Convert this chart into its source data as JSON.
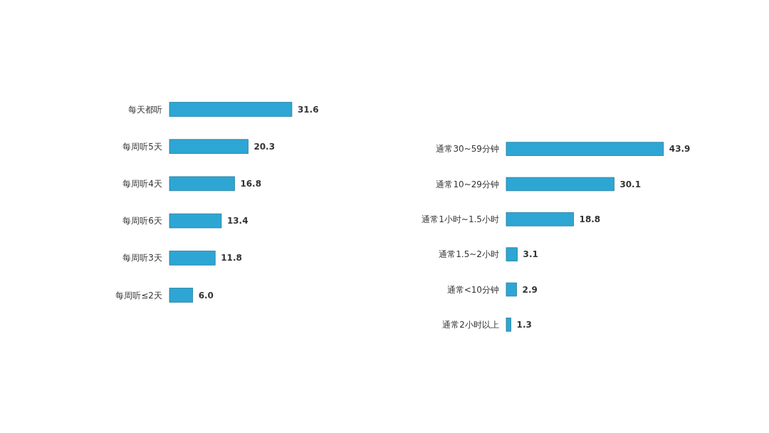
{
  "chart_data": [
    {
      "type": "bar",
      "orientation": "horizontal",
      "categories": [
        "每天都听",
        "每周听5天",
        "每周听4天",
        "每周听6天",
        "每周听3天",
        "每周听≤2天"
      ],
      "values": [
        31.6,
        20.3,
        16.8,
        13.4,
        11.8,
        6.0
      ],
      "value_labels": [
        "31.6",
        "20.3",
        "16.8",
        "13.4",
        "11.8",
        "6.0"
      ],
      "color": "#2ea6d3"
    },
    {
      "type": "bar",
      "orientation": "horizontal",
      "categories": [
        "通常30~59分钟",
        "通常10~29分钟",
        "通常1小时~1.5小时",
        "通常1.5~2小时",
        "通常<10分钟",
        "通常2小时以上"
      ],
      "values": [
        43.9,
        30.1,
        18.8,
        3.1,
        2.9,
        1.3
      ],
      "value_labels": [
        "43.9",
        "30.1",
        "18.8",
        "3.1",
        "2.9",
        "1.3"
      ],
      "color": "#2ea6d3"
    }
  ]
}
